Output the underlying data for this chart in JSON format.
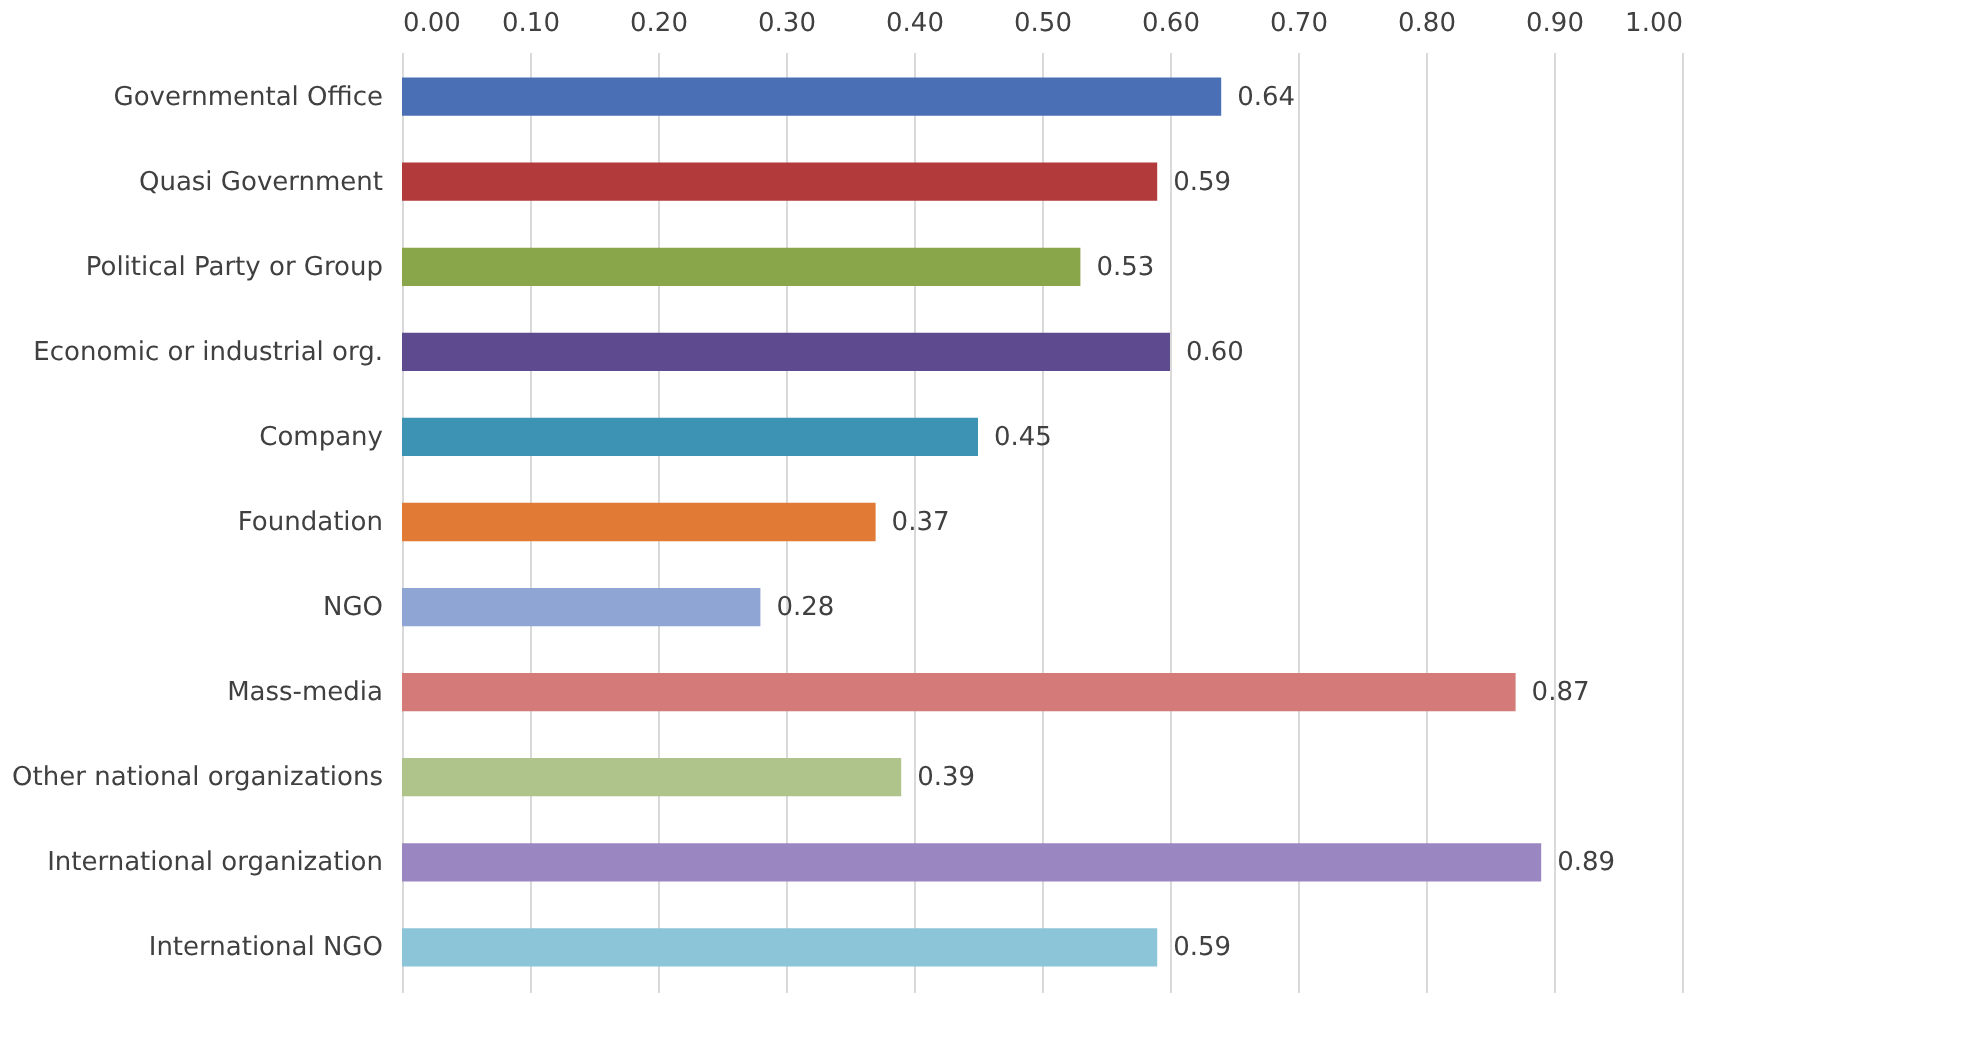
{
  "chart_data": {
    "type": "bar",
    "orientation": "horizontal",
    "categories": [
      "Governmental Office",
      "Quasi Government",
      "Political Party or Group",
      "Economic or industrial org.",
      "Company",
      "Foundation",
      "NGO",
      "Mass-media",
      "Other national organizations",
      "International organization",
      "International NGO"
    ],
    "values": [
      0.64,
      0.59,
      0.53,
      0.6,
      0.45,
      0.37,
      0.28,
      0.87,
      0.39,
      0.89,
      0.59
    ],
    "colors": [
      "#4a6fb5",
      "#b23a3a",
      "#8aa64a",
      "#5e4a8e",
      "#3d93b3",
      "#e07a34",
      "#8fa6d4",
      "#d47a78",
      "#aec48a",
      "#9a86c0",
      "#8cc4d8"
    ],
    "xlim": [
      0,
      1
    ],
    "xticks": [
      {
        "value": 0,
        "label": "0.00"
      },
      {
        "value": 0.1,
        "label": "0.10"
      },
      {
        "value": 0.2,
        "label": "0.20"
      },
      {
        "value": 0.3,
        "label": "0.30"
      },
      {
        "value": 0.4,
        "label": "0.40"
      },
      {
        "value": 0.5,
        "label": "0.50"
      },
      {
        "value": 0.6,
        "label": "0.60"
      },
      {
        "value": 0.7,
        "label": "0.70"
      },
      {
        "value": 0.8,
        "label": "0.80"
      },
      {
        "value": 0.9,
        "label": "0.90"
      },
      {
        "value": 1,
        "label": "1.00"
      }
    ],
    "value_labels": [
      "0.64",
      "0.59",
      "0.53",
      "0.60",
      "0.45",
      "0.37",
      "0.28",
      "0.87",
      "0.39",
      "0.89",
      "0.59"
    ],
    "grid": "x"
  }
}
